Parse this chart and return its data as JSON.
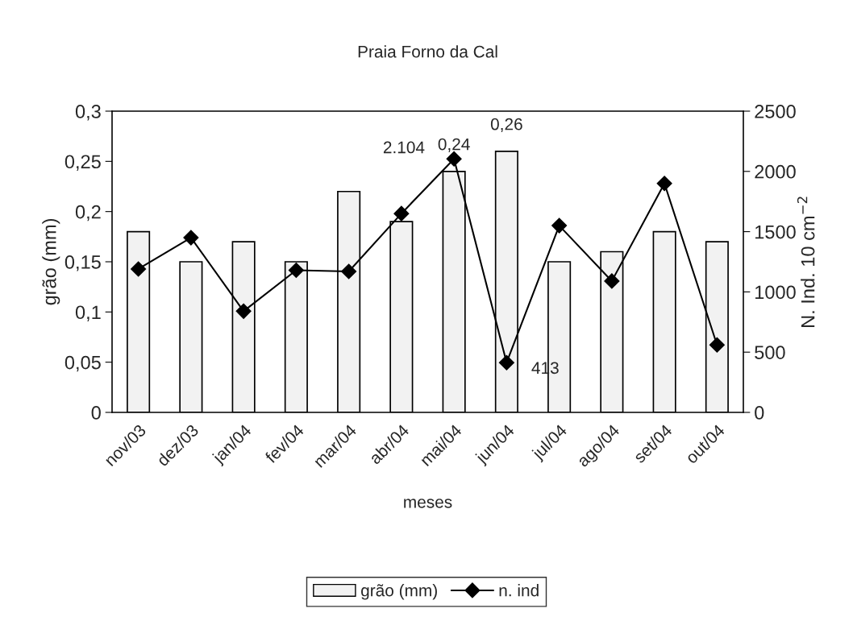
{
  "chart_data": {
    "type": "bar",
    "title": "Praia Forno da Cal",
    "xlabel": "meses",
    "ylabel": "grão (mm)",
    "y2label": "N. Ind. 10 cm$^{−2}$",
    "categories": [
      "nov/03",
      "dez/03",
      "jan/04",
      "fev/04",
      "mar/04",
      "abr/04",
      "mai/04",
      "jun/04",
      "jul/04",
      "ago/04",
      "set/04",
      "out/04"
    ],
    "series": [
      {
        "name": "grão (mm)",
        "color": "#f2f2f2",
        "values": [
          0.18,
          0.15,
          0.17,
          0.15,
          0.22,
          0.19,
          0.24,
          0.26,
          0.15,
          0.16,
          0.18,
          0.17
        ],
        "value_labels": [
          null,
          null,
          null,
          null,
          null,
          null,
          "0,24",
          "0,26",
          null,
          null,
          null,
          null
        ]
      },
      {
        "name": "n. ind",
        "type": "line",
        "axis": "y2",
        "color": "#000000",
        "marker": "diamond",
        "values": [
          1190,
          1450,
          840,
          1180,
          1170,
          1650,
          2104,
          413,
          1550,
          1090,
          1900,
          560
        ],
        "value_labels": [
          null,
          null,
          null,
          null,
          null,
          null,
          "2.104",
          "413",
          null,
          null,
          null,
          null
        ]
      }
    ],
    "ylim": [
      0,
      0.3
    ],
    "yticks": [
      0,
      {
        "value": 0.05,
        "label": "0,05"
      },
      {
        "value": 0.1,
        "label": "0,1"
      },
      {
        "value": 0.15,
        "label": "0,15"
      },
      {
        "value": 0.2,
        "label": "0,2"
      },
      {
        "value": 0.25,
        "label": "0,25"
      },
      {
        "value": 0.3,
        "label": "0,3"
      }
    ],
    "y2lim": [
      0,
      2500
    ],
    "y2ticks": [
      0,
      500,
      1000,
      1500,
      2000,
      2500
    ],
    "grid": false,
    "legend": "bottom"
  }
}
